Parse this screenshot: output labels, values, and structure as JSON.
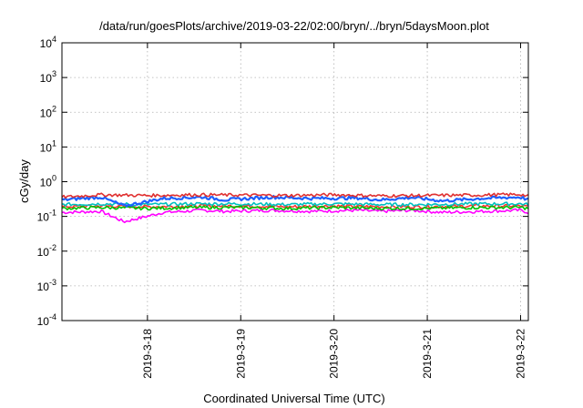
{
  "chart_data": {
    "type": "line",
    "title": "/data/run/goesPlots/archive/2019-03-22/02:00/bryn/../bryn/5daysMoon.plot",
    "xlabel": "Coordinated Universal Time (UTC)",
    "ylabel": "cGy/day",
    "yscale": "log",
    "ylim": [
      0.0001,
      10000
    ],
    "y_ticks": [
      {
        "base": "10",
        "exp": "-4",
        "value": 0.0001
      },
      {
        "base": "10",
        "exp": "-3",
        "value": 0.001
      },
      {
        "base": "10",
        "exp": "-2",
        "value": 0.01
      },
      {
        "base": "10",
        "exp": "-1",
        "value": 0.1
      },
      {
        "base": "10",
        "exp": "0",
        "value": 1
      },
      {
        "base": "10",
        "exp": "1",
        "value": 10
      },
      {
        "base": "10",
        "exp": "2",
        "value": 100
      },
      {
        "base": "10",
        "exp": "3",
        "value": 1000
      },
      {
        "base": "10",
        "exp": "4",
        "value": 10000
      }
    ],
    "xlim": [
      "2019-03-17T02:00",
      "2019-03-22T02:00"
    ],
    "x_ticks": [
      "2019-3-18",
      "2019-3-19",
      "2019-3-20",
      "2019-3-21",
      "2019-3-22"
    ],
    "grid": true,
    "legend": "none",
    "series": [
      {
        "color": "#ff00ff",
        "x": [
          "2019-03-17T02:00",
          "2019-03-17T12:00",
          "2019-03-17T18:00",
          "2019-03-18T04:00",
          "2019-03-18T14:00",
          "2019-03-18T20:00",
          "2019-03-19T08:00",
          "2019-03-19T18:00",
          "2019-03-20T06:00",
          "2019-03-20T12:00",
          "2019-03-20T20:00",
          "2019-03-21T04:00",
          "2019-03-21T14:00",
          "2019-03-22T00:00",
          "2019-03-22T02:00"
        ],
        "y": [
          0.13,
          0.14,
          0.07,
          0.13,
          0.15,
          0.14,
          0.15,
          0.14,
          0.15,
          0.14,
          0.15,
          0.13,
          0.14,
          0.15,
          0.13
        ]
      },
      {
        "color": "#ff3030",
        "x": [
          "2019-03-17T02:00",
          "2019-03-17T12:00",
          "2019-03-18T00:00",
          "2019-03-18T12:00",
          "2019-03-19T00:00",
          "2019-03-19T12:00",
          "2019-03-20T00:00",
          "2019-03-20T12:00",
          "2019-03-21T00:00",
          "2019-03-21T12:00",
          "2019-03-22T00:00",
          "2019-03-22T02:00"
        ],
        "y": [
          0.19,
          0.2,
          0.19,
          0.2,
          0.2,
          0.19,
          0.2,
          0.19,
          0.19,
          0.2,
          0.2,
          0.19
        ]
      },
      {
        "color": "#00c0c0",
        "x": [
          "2019-03-17T02:00",
          "2019-03-17T12:00",
          "2019-03-18T00:00",
          "2019-03-18T12:00",
          "2019-03-19T00:00",
          "2019-03-19T12:00",
          "2019-03-20T00:00",
          "2019-03-20T12:00",
          "2019-03-21T00:00",
          "2019-03-21T12:00",
          "2019-03-22T00:00",
          "2019-03-22T02:00"
        ],
        "y": [
          0.22,
          0.23,
          0.22,
          0.23,
          0.23,
          0.22,
          0.23,
          0.22,
          0.22,
          0.23,
          0.23,
          0.22
        ]
      },
      {
        "color": "#00c000",
        "x": [
          "2019-03-17T02:00",
          "2019-03-17T12:00",
          "2019-03-18T00:00",
          "2019-03-18T12:00",
          "2019-03-19T00:00",
          "2019-03-19T12:00",
          "2019-03-20T00:00",
          "2019-03-20T12:00",
          "2019-03-21T00:00",
          "2019-03-21T12:00",
          "2019-03-22T00:00",
          "2019-03-22T02:00"
        ],
        "y": [
          0.17,
          0.18,
          0.17,
          0.18,
          0.18,
          0.17,
          0.18,
          0.17,
          0.17,
          0.18,
          0.18,
          0.17
        ]
      },
      {
        "color": "#1e60ff",
        "x": [
          "2019-03-17T02:00",
          "2019-03-17T12:00",
          "2019-03-17T18:00",
          "2019-03-18T04:00",
          "2019-03-18T14:00",
          "2019-03-18T20:00",
          "2019-03-19T08:00",
          "2019-03-19T18:00",
          "2019-03-20T06:00",
          "2019-03-20T12:00",
          "2019-03-20T20:00",
          "2019-03-21T04:00",
          "2019-03-21T14:00",
          "2019-03-22T00:00",
          "2019-03-22T02:00"
        ],
        "y": [
          0.3,
          0.36,
          0.2,
          0.33,
          0.36,
          0.3,
          0.36,
          0.33,
          0.34,
          0.3,
          0.35,
          0.28,
          0.33,
          0.36,
          0.3
        ]
      },
      {
        "color": "#e03030",
        "x": [
          "2019-03-17T02:00",
          "2019-03-17T12:00",
          "2019-03-18T00:00",
          "2019-03-18T12:00",
          "2019-03-19T00:00",
          "2019-03-19T12:00",
          "2019-03-20T00:00",
          "2019-03-20T12:00",
          "2019-03-21T00:00",
          "2019-03-21T12:00",
          "2019-03-22T00:00",
          "2019-03-22T02:00"
        ],
        "y": [
          0.36,
          0.42,
          0.4,
          0.42,
          0.41,
          0.4,
          0.42,
          0.39,
          0.4,
          0.41,
          0.43,
          0.38
        ]
      }
    ]
  }
}
